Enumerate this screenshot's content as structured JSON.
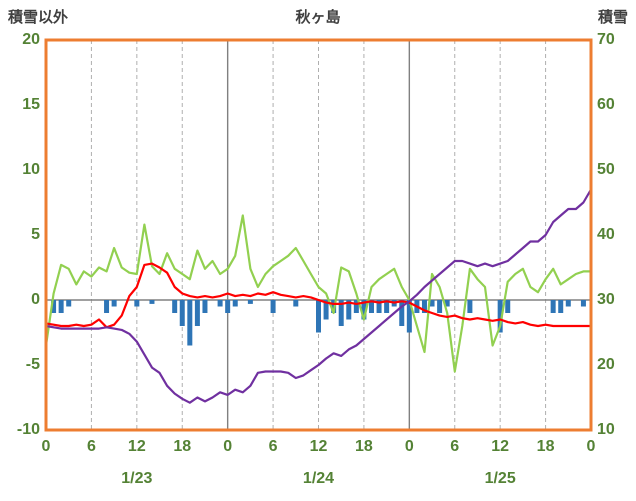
{
  "header": {
    "left_axis_title": "積雪以外",
    "title": "秋ヶ島",
    "right_axis_title": "積雪"
  },
  "chart_data": {
    "type": "line",
    "title": "秋ヶ島",
    "left_axis": {
      "label": "積雪以外",
      "min": -10,
      "max": 20,
      "ticks": [
        20,
        15,
        10,
        5,
        0,
        -5,
        -10
      ]
    },
    "right_axis": {
      "label": "積雪",
      "min": 10,
      "max": 70,
      "ticks": [
        70,
        60,
        50,
        40,
        30,
        20,
        10
      ]
    },
    "x_axis": {
      "hours_total": 72,
      "hour_step": 6,
      "hour_ticks": [
        "0",
        "6",
        "12",
        "18",
        "0",
        "6",
        "12",
        "18",
        "0",
        "6",
        "12",
        "18",
        "0"
      ],
      "day_labels": [
        "1/23",
        "1/24",
        "1/25"
      ]
    },
    "grid": {
      "vertical_dashed_hours": [
        6,
        12,
        18,
        30,
        36,
        42,
        54,
        60,
        66
      ],
      "vertical_solid_hours": [
        24,
        48
      ],
      "zero_line": true
    },
    "colors": {
      "border": "#ED7D31",
      "grid_dashed": "#AFAFAF",
      "grid_solid": "#808080",
      "zero_line": "#808080",
      "tick_text": "#548235",
      "title_text": "#404040",
      "green_line": "#92D050",
      "red_line": "#FF0000",
      "purple_line": "#7030A0",
      "blue_bars": "#2E75B6"
    },
    "series": [
      {
        "name": "green-line",
        "kind": "line",
        "axis": "left",
        "color": "#92D050",
        "values": [
          -3.5,
          0.5,
          2.7,
          2.4,
          1.2,
          2.2,
          1.8,
          2.5,
          2.2,
          4.0,
          2.5,
          2.1,
          2.0,
          5.8,
          2.6,
          2.0,
          3.6,
          2.4,
          2.0,
          1.6,
          3.8,
          2.4,
          3.0,
          2.0,
          2.4,
          3.4,
          6.5,
          2.4,
          1.0,
          2.0,
          2.6,
          3.0,
          3.4,
          4.0,
          3.0,
          2.0,
          1.0,
          0.5,
          -1.0,
          2.5,
          2.2,
          0.5,
          -1.5,
          1.0,
          1.6,
          2.0,
          2.4,
          1.0,
          0.0,
          -2.0,
          -4.0,
          2.0,
          1.0,
          -1.0,
          -5.5,
          -2.0,
          2.4,
          1.6,
          1.0,
          -3.5,
          -2.0,
          1.4,
          2.0,
          2.4,
          1.0,
          0.6,
          1.6,
          2.4,
          1.2,
          1.6,
          2.0,
          2.2,
          2.2
        ]
      },
      {
        "name": "red-line",
        "kind": "line",
        "axis": "left",
        "color": "#FF0000",
        "values": [
          -1.8,
          -1.9,
          -2.0,
          -2.0,
          -1.9,
          -2.0,
          -1.9,
          -1.5,
          -2.1,
          -1.9,
          -1.2,
          0.3,
          1.0,
          2.7,
          2.8,
          2.5,
          2.1,
          1.0,
          0.5,
          0.3,
          0.2,
          0.3,
          0.2,
          0.3,
          0.5,
          0.3,
          0.4,
          0.3,
          0.5,
          0.4,
          0.6,
          0.4,
          0.3,
          0.2,
          0.3,
          0.2,
          0.0,
          -0.2,
          -0.3,
          -0.3,
          -0.2,
          -0.3,
          -0.2,
          -0.1,
          -0.2,
          -0.1,
          -0.2,
          -0.1,
          -0.2,
          -0.5,
          -0.8,
          -1.0,
          -1.2,
          -1.3,
          -1.2,
          -1.4,
          -1.5,
          -1.4,
          -1.5,
          -1.6,
          -1.5,
          -1.7,
          -1.8,
          -1.7,
          -1.9,
          -2.0,
          -1.9,
          -2.0,
          -2.0,
          -2.0,
          -2.0,
          -2.0,
          -2.0
        ]
      },
      {
        "name": "purple-line",
        "kind": "line",
        "axis": "left",
        "color": "#7030A0",
        "values": [
          -2.0,
          -2.1,
          -2.2,
          -2.2,
          -2.2,
          -2.2,
          -2.2,
          -2.2,
          -2.1,
          -2.2,
          -2.3,
          -2.6,
          -3.2,
          -4.2,
          -5.2,
          -5.6,
          -6.6,
          -7.2,
          -7.6,
          -7.9,
          -7.5,
          -7.8,
          -7.5,
          -7.1,
          -7.3,
          -6.9,
          -7.1,
          -6.6,
          -5.6,
          -5.5,
          -5.5,
          -5.5,
          -5.6,
          -6.0,
          -5.8,
          -5.4,
          -5.0,
          -4.5,
          -4.1,
          -4.3,
          -3.8,
          -3.5,
          -3.0,
          -2.5,
          -2.0,
          -1.5,
          -1.0,
          -0.5,
          -0.1,
          0.4,
          1.0,
          1.5,
          2.0,
          2.5,
          3.0,
          3.0,
          2.8,
          2.6,
          2.8,
          2.6,
          2.8,
          3.0,
          3.5,
          4.0,
          4.5,
          4.5,
          5.0,
          6.0,
          6.5,
          7.0,
          7.0,
          7.5,
          8.5
        ]
      },
      {
        "name": "blue-bars",
        "kind": "bar",
        "axis": "left",
        "color": "#2E75B6",
        "values": [
          0,
          -1,
          -1,
          -0.5,
          0,
          0,
          0,
          0,
          -1,
          -0.5,
          0,
          0,
          -0.5,
          0,
          -0.3,
          0,
          0,
          -1,
          -2,
          -3.5,
          -2,
          -1,
          0,
          -0.5,
          -1,
          -0.5,
          0,
          -0.3,
          0,
          0,
          -1,
          0,
          0,
          -0.5,
          0,
          0,
          -2.5,
          -1.5,
          -1,
          -2,
          -1.5,
          -1,
          -1.5,
          -1,
          -1,
          -1,
          -0.5,
          -2,
          -2.5,
          -1,
          -1,
          -0.5,
          -1,
          -0.5,
          0,
          0,
          -1,
          0,
          0,
          0,
          -2.5,
          -1,
          0,
          0,
          0,
          0,
          0,
          -1,
          -1,
          -0.5,
          0,
          -0.5,
          0
        ]
      }
    ]
  }
}
